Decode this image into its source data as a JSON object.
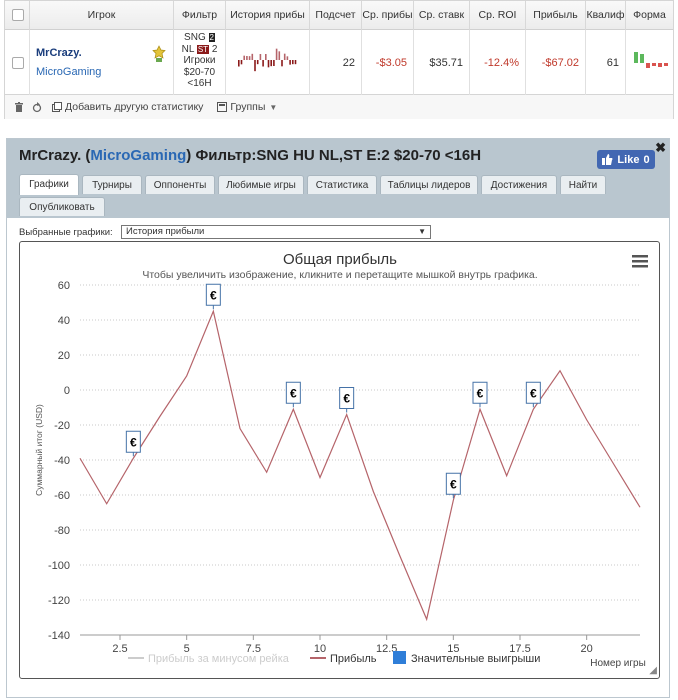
{
  "table": {
    "headers": [
      "Игрок",
      "Фильтр",
      "История прибы",
      "Подсчет",
      "Ср. прибы",
      "Ср. ставк",
      "Ср. ROI",
      "Прибыль",
      "Квалиф",
      "Форма"
    ],
    "row": {
      "player_name": "MrCrazy.",
      "network": "MicroGaming",
      "filter_lines": [
        "SNG",
        "NL",
        "2",
        "Игроки",
        "$20-70",
        "<16H"
      ],
      "filter_badge_1": "2",
      "filter_badge_st": "ST",
      "count": "22",
      "avg_profit": "-$3.05",
      "avg_stake": "$35.71",
      "avg_roi": "-12.4%",
      "profit": "-$67.02",
      "qualif": "61"
    },
    "footer": {
      "add_stats": "Добавить другую статистику",
      "groups": "Группы"
    }
  },
  "panel": {
    "title_player": "MrCrazy.",
    "title_network": "MicroGaming",
    "title_filter": "Фильтр:SNG HU NL,ST E:2 $20-70 <16H",
    "like_label": "Like",
    "like_count": "0",
    "tabs": [
      "Графики",
      "Турниры",
      "Оппоненты",
      "Любимые игры",
      "Статистика",
      "Таблицы лидеров",
      "Достижения",
      "Найти",
      "Опубликовать"
    ],
    "selected_charts_label": "Выбранные графики:",
    "selected_chart": "История прибыли"
  },
  "chart_data": {
    "type": "line",
    "title": "Общая прибыль",
    "subtitle": "Чтобы увеличить изображение, кликните и перетащите мышкой внутрь графика.",
    "xlabel": "Номер игры",
    "ylabel": "Суммарный итог (USD)",
    "xlim": [
      1,
      22
    ],
    "ylim": [
      -140,
      60
    ],
    "x_ticks": [
      2.5,
      5,
      7.5,
      10,
      12.5,
      15,
      17.5,
      20
    ],
    "y_ticks": [
      60,
      40,
      20,
      0,
      -20,
      -40,
      -60,
      -80,
      -100,
      -120,
      -140
    ],
    "series": [
      {
        "name": "Прибыль",
        "color": "#b5646a",
        "x": [
          1,
          2,
          3,
          4,
          5,
          6,
          7,
          8,
          9,
          10,
          11,
          12,
          13,
          14,
          15,
          16,
          17,
          18,
          19,
          20,
          21,
          22
        ],
        "y": [
          -39,
          -65,
          -39,
          -15,
          8,
          45,
          -22,
          -47,
          -11,
          -50,
          -14,
          -58,
          -95,
          -131,
          -63,
          -11,
          -49,
          -11,
          11,
          -17,
          -42,
          -67
        ]
      }
    ],
    "significant_wins": [
      {
        "x": 3,
        "label": "€"
      },
      {
        "x": 6,
        "label": "€"
      },
      {
        "x": 9,
        "label": "€"
      },
      {
        "x": 11,
        "label": "€"
      },
      {
        "x": 15,
        "label": "€"
      },
      {
        "x": 16,
        "label": "€"
      },
      {
        "x": 18,
        "label": "€"
      }
    ],
    "legend": [
      {
        "name": "Прибыль за минусом рейка",
        "color": "#cccccc",
        "marker": "line",
        "disabled": true
      },
      {
        "name": "Прибыль",
        "color": "#b5646a",
        "marker": "line",
        "disabled": false
      },
      {
        "name": "Значительные выигрыши",
        "color": "#2f7ed8",
        "marker": "square",
        "disabled": false
      }
    ],
    "legend_position": "bottom",
    "grid": "horizontal dotted"
  }
}
